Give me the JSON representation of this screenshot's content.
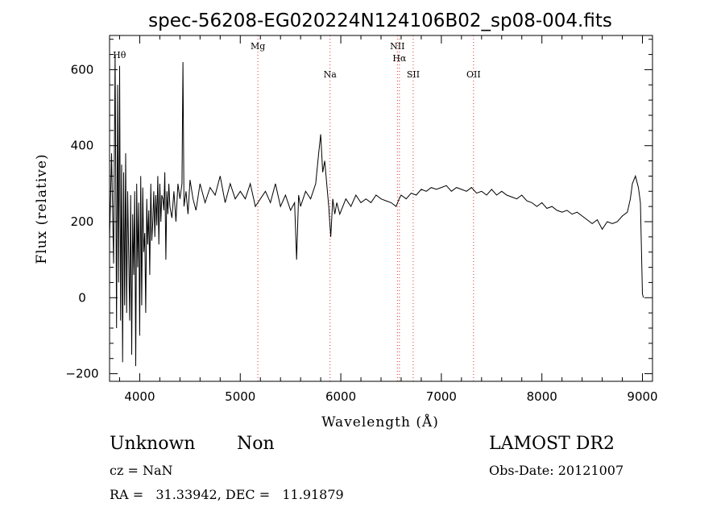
{
  "chart_data": {
    "type": "line",
    "title": "spec-56208-EG020224N124106B02_sp08-004.fits",
    "xlabel": "Wavelength (Å)",
    "ylabel": "Flux (relative)",
    "xlim": [
      3700,
      9100
    ],
    "ylim": [
      -220,
      690
    ],
    "x_ticks": [
      4000,
      5000,
      6000,
      7000,
      8000,
      9000
    ],
    "y_ticks": [
      -200,
      0,
      200,
      400,
      600
    ],
    "x_tick_labels": [
      "4000",
      "5000",
      "6000",
      "7000",
      "8000",
      "9000"
    ],
    "y_tick_labels": [
      "−200",
      "0",
      "200",
      "400",
      "600"
    ],
    "grid": false,
    "series": [
      {
        "x": [
          3700,
          3720,
          3740,
          3755,
          3770,
          3780,
          3790,
          3800,
          3810,
          3820,
          3830,
          3840,
          3850,
          3860,
          3870,
          3880,
          3890,
          3900,
          3910,
          3920,
          3930,
          3940,
          3950,
          3960,
          3970,
          3980,
          3990,
          4000,
          4010,
          4020,
          4030,
          4040,
          4050,
          4060,
          4070,
          4080,
          4090,
          4100,
          4110,
          4120,
          4130,
          4140,
          4150,
          4160,
          4170,
          4180,
          4190,
          4200,
          4210,
          4220,
          4230,
          4240,
          4250,
          4260,
          4270,
          4280,
          4290,
          4300,
          4320,
          4340,
          4360,
          4380,
          4400,
          4420,
          4430,
          4440,
          4460,
          4480,
          4500,
          4530,
          4560,
          4600,
          4650,
          4700,
          4750,
          4800,
          4850,
          4900,
          4950,
          5000,
          5050,
          5100,
          5150,
          5200,
          5250,
          5300,
          5350,
          5400,
          5450,
          5500,
          5540,
          5560,
          5580,
          5600,
          5650,
          5700,
          5750,
          5780,
          5800,
          5820,
          5840,
          5860,
          5880,
          5890,
          5900,
          5920,
          5940,
          5960,
          5990,
          6050,
          6100,
          6150,
          6200,
          6250,
          6300,
          6350,
          6400,
          6450,
          6500,
          6550,
          6580,
          6600,
          6650,
          6700,
          6750,
          6800,
          6850,
          6900,
          6950,
          7000,
          7050,
          7100,
          7150,
          7200,
          7250,
          7300,
          7350,
          7400,
          7450,
          7500,
          7550,
          7600,
          7650,
          7700,
          7750,
          7800,
          7850,
          7900,
          7950,
          8000,
          8050,
          8100,
          8150,
          8200,
          8250,
          8300,
          8350,
          8400,
          8450,
          8500,
          8550,
          8600,
          8650,
          8700,
          8750,
          8800,
          8850,
          8880,
          8900,
          8930,
          8960,
          8980,
          9000,
          9010
        ],
        "y": [
          150,
          380,
          90,
          640,
          -80,
          560,
          40,
          610,
          -60,
          350,
          -170,
          330,
          -20,
          380,
          -40,
          280,
          120,
          -60,
          270,
          -150,
          220,
          60,
          280,
          -180,
          300,
          80,
          250,
          -100,
          320,
          -20,
          290,
          120,
          170,
          -40,
          260,
          140,
          230,
          60,
          300,
          150,
          200,
          280,
          160,
          270,
          190,
          320,
          140,
          300,
          200,
          270,
          260,
          230,
          330,
          100,
          280,
          220,
          300,
          240,
          210,
          280,
          200,
          300,
          260,
          300,
          620,
          240,
          280,
          220,
          310,
          260,
          230,
          300,
          250,
          290,
          270,
          320,
          250,
          300,
          260,
          280,
          260,
          300,
          240,
          260,
          280,
          250,
          300,
          240,
          270,
          230,
          250,
          100,
          270,
          240,
          280,
          260,
          300,
          380,
          430,
          330,
          360,
          300,
          240,
          200,
          160,
          260,
          220,
          250,
          220,
          260,
          240,
          270,
          250,
          260,
          250,
          270,
          260,
          255,
          250,
          240,
          260,
          270,
          260,
          275,
          270,
          285,
          280,
          290,
          285,
          290,
          295,
          280,
          290,
          285,
          280,
          290,
          275,
          280,
          270,
          285,
          270,
          280,
          270,
          265,
          260,
          270,
          255,
          250,
          240,
          250,
          235,
          240,
          230,
          225,
          230,
          220,
          225,
          215,
          205,
          195,
          205,
          180,
          200,
          195,
          200,
          215,
          225,
          260,
          300,
          320,
          290,
          250,
          10,
          0
        ]
      }
    ],
    "lines": [
      {
        "label": "Hθ",
        "x": 3798,
        "drawn": false
      },
      {
        "label": "Mg",
        "x": 5175
      },
      {
        "label": "Na",
        "x": 5893
      },
      {
        "label": "NII",
        "x": 6563
      },
      {
        "label": "Hα",
        "x": 6583
      },
      {
        "label": "SII",
        "x": 6720
      },
      {
        "label": "OII",
        "x": 7320
      }
    ]
  },
  "footer": {
    "class": "Unknown",
    "subclass": "Non",
    "survey": "LAMOST DR2",
    "cz": "cz = NaN",
    "obs_date": "Obs-Date: 20121007",
    "radec": "RA =   31.33942, DEC =   11.91879"
  },
  "colors": {
    "spectrum": "#000000",
    "line_marker": "#dd3333",
    "axis": "#000000"
  }
}
